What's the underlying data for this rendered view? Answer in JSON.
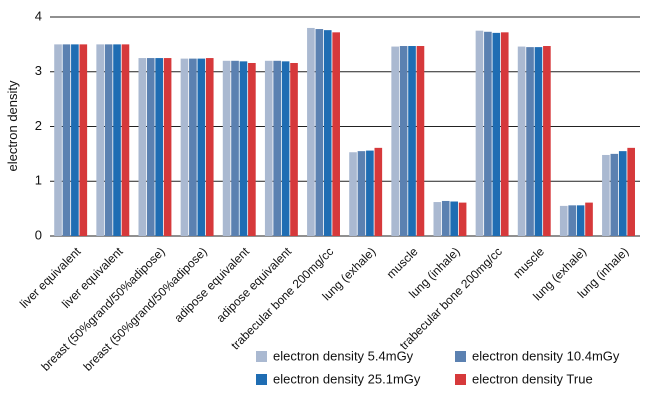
{
  "chart_data": {
    "type": "bar",
    "y_label": "electron density",
    "categories": [
      "liver equivalent",
      "liver equivalent",
      "breast (50%grand/50%adipose)",
      "breast (50%grand/50%adipose)",
      "adipose equivalent",
      "adipose equivalent",
      "trabecular bone 200mg/cc",
      "lung (exhale)",
      "muscle",
      "lung (inhale)",
      "trabecular bone 200mg/cc",
      "muscle",
      "lung (exhale)",
      "lung (inhale)"
    ],
    "series": [
      {
        "name": "electron density 5.4mGy",
        "color": "#aab9d1",
        "values": [
          3.5,
          3.5,
          3.25,
          3.24,
          3.2,
          3.2,
          3.8,
          1.53,
          3.46,
          0.62,
          3.75,
          3.46,
          0.55,
          1.48
        ]
      },
      {
        "name": "electron density 10.4mGy",
        "color": "#5b81b1",
        "values": [
          3.5,
          3.5,
          3.25,
          3.24,
          3.2,
          3.2,
          3.78,
          1.55,
          3.47,
          0.64,
          3.73,
          3.45,
          0.56,
          1.5
        ]
      },
      {
        "name": "electron density 25.1mGy",
        "color": "#1f6db3",
        "values": [
          3.5,
          3.5,
          3.25,
          3.24,
          3.19,
          3.19,
          3.76,
          1.56,
          3.47,
          0.63,
          3.71,
          3.45,
          0.56,
          1.55
        ]
      },
      {
        "name": "electron density True",
        "color": "#d6393b",
        "values": [
          3.5,
          3.5,
          3.25,
          3.25,
          3.16,
          3.16,
          3.72,
          1.61,
          3.47,
          0.61,
          3.72,
          3.47,
          0.61,
          1.61
        ]
      }
    ],
    "ylim": [
      0,
      4
    ],
    "yticks": [
      0,
      1,
      2,
      3,
      4
    ],
    "grid": true
  }
}
